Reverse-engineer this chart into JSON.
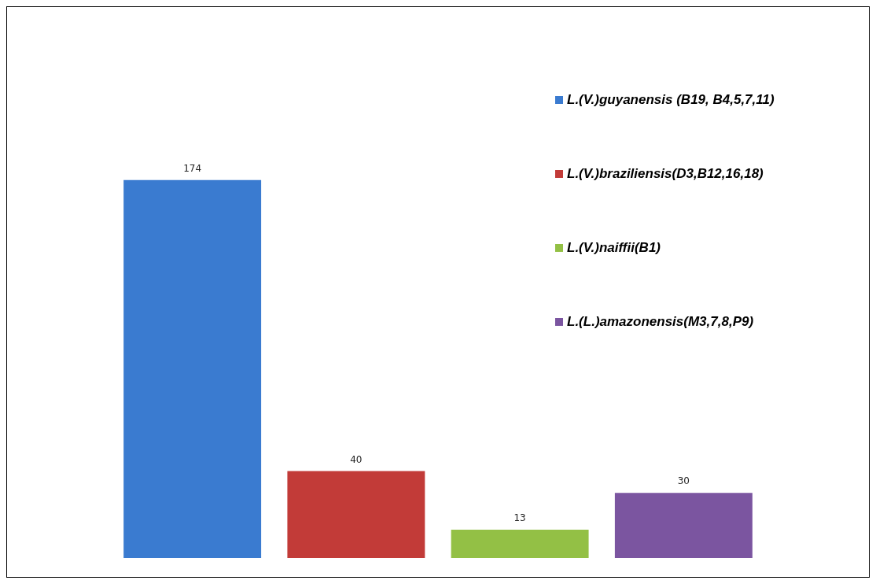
{
  "chart_data": {
    "type": "bar",
    "categories": [
      null
    ],
    "series": [
      {
        "name": "L.(V.)guyanensis (B19, B4,5,7,11)",
        "color": "#3a7bd0",
        "values": [
          174
        ]
      },
      {
        "name": "L.(V.)braziliensis(D3,B12,16,18)",
        "color": "#c23b38",
        "values": [
          40
        ]
      },
      {
        "name": "L.(V.)naiffii(B1)",
        "color": "#93c045",
        "values": [
          13
        ]
      },
      {
        "name": "L.(L.)amazonensis(M3,7,8,P9)",
        "color": "#7b55a0",
        "values": [
          30
        ]
      }
    ],
    "data_labels": true,
    "legend": "top right",
    "grid": false
  }
}
